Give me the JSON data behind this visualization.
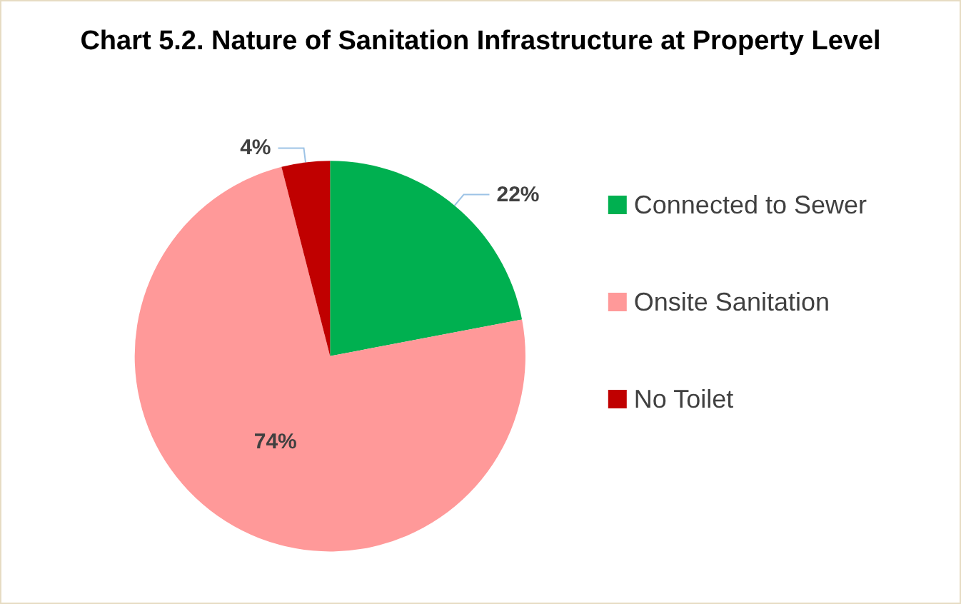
{
  "chart_data": {
    "type": "pie",
    "title": "Chart 5.2. Nature of Sanitation Infrastructure at Property Level",
    "categories": [
      "Connected to Sewer",
      "Onsite Sanitation",
      "No Toilet"
    ],
    "values": [
      22,
      74,
      4
    ],
    "colors": [
      "#00b050",
      "#ff9999",
      "#c00000"
    ],
    "value_labels": [
      "22%",
      "74%",
      "4%"
    ],
    "legend": "right"
  }
}
